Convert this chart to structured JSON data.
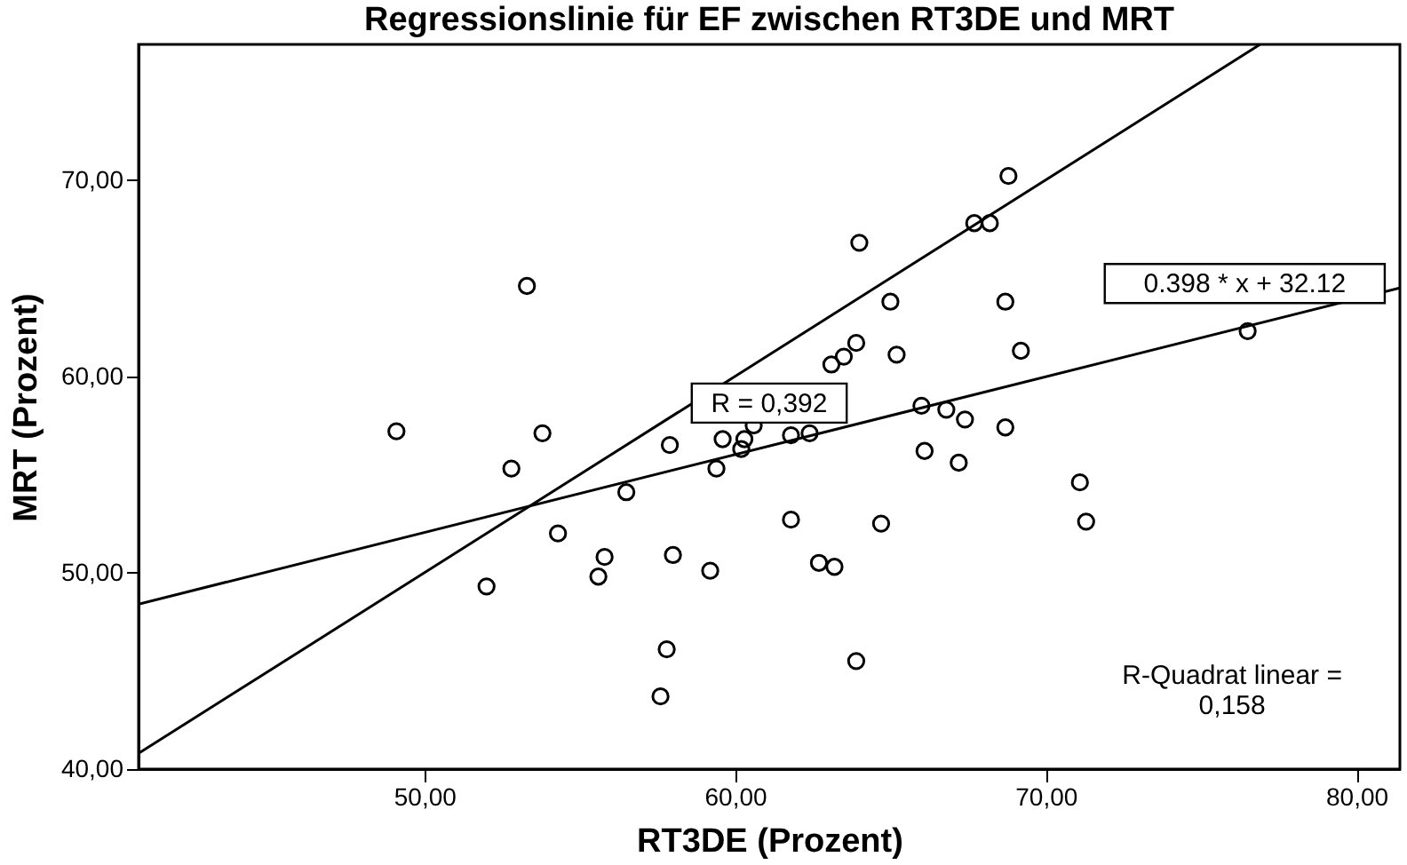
{
  "chart_data": {
    "type": "scatter",
    "title": "Regressionslinie für EF zwischen RT3DE und MRT",
    "xlabel": "RT3DE (Prozent)",
    "ylabel": "MRT (Prozent)",
    "grid": false,
    "xlim": [
      40.8,
      81.4
    ],
    "ylim": [
      40,
      76.9
    ],
    "xticks": [
      {
        "value": 50,
        "label": "50,00"
      },
      {
        "value": 60,
        "label": "60,00"
      },
      {
        "value": 70,
        "label": "70,00"
      },
      {
        "value": 80,
        "label": "80,00"
      }
    ],
    "yticks": [
      {
        "value": 40,
        "label": "40,00"
      },
      {
        "value": 50,
        "label": "50,00"
      },
      {
        "value": 60,
        "label": "60,00"
      },
      {
        "value": 70,
        "label": "70,00"
      }
    ],
    "series": [
      {
        "color": "#000000",
        "marker": "circle",
        "x": [
          49.1,
          53.8,
          52.8,
          57.9,
          59.6,
          60.3,
          60.6,
          60.2,
          61.8,
          62.4,
          59.4,
          56.5,
          61.8,
          54.3,
          55.8,
          58.0,
          59.2,
          55.6,
          52.0,
          62.7,
          63.2,
          57.8,
          57.6,
          63.9,
          66.0,
          66.8,
          67.4,
          68.7,
          66.1,
          67.2,
          71.1,
          71.3,
          64.7,
          68.8,
          67.7,
          68.2,
          64.0,
          65.0,
          68.7,
          65.2,
          69.2,
          76.5,
          63.9,
          63.5,
          63.1,
          53.3
        ],
        "values": [
          57.2,
          57.1,
          55.3,
          56.5,
          56.8,
          56.8,
          57.5,
          56.3,
          57.0,
          57.1,
          55.3,
          54.1,
          52.7,
          52.0,
          50.8,
          50.9,
          50.1,
          49.8,
          49.3,
          50.5,
          50.3,
          46.1,
          43.7,
          45.5,
          58.5,
          58.3,
          57.8,
          57.4,
          56.2,
          55.6,
          54.6,
          52.6,
          52.5,
          70.2,
          67.8,
          67.8,
          66.8,
          63.8,
          63.8,
          61.1,
          61.3,
          62.3,
          61.7,
          61.0,
          60.6,
          64.6
        ]
      },
      {
        "type": "line",
        "color": "#000000",
        "x": [
          40.8,
          81.4
        ],
        "values": [
          48.4,
          64.5
        ]
      },
      {
        "type": "line",
        "color": "#000000",
        "x": [
          40.8,
          76.9
        ],
        "values": [
          40.8,
          76.9
        ]
      }
    ],
    "annotations": [
      "R = 0,392",
      "0.398 * x + 32.12",
      "R-Quadrat linear =\n0,158"
    ]
  }
}
